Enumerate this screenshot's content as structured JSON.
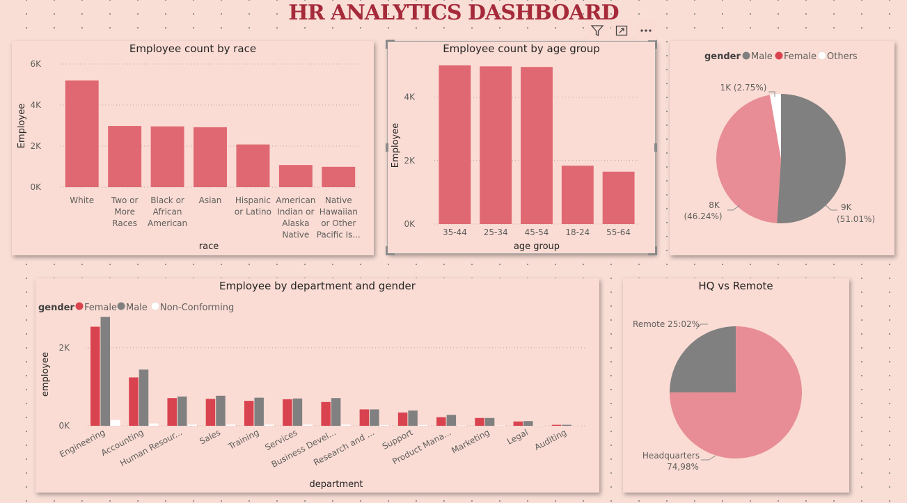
{
  "dashboard": {
    "title": "HR ANALYTICS DASHBOARD"
  },
  "toolbar": {
    "filter_icon": "filter-icon",
    "focus_icon": "focus-mode-icon",
    "more_icon": "more-options-icon"
  },
  "colors": {
    "female": "#d9434f",
    "male": "#808080",
    "other": "#ffffff",
    "bar": "#e06872",
    "pie_female": "#e88d95",
    "pie_male": "#808080"
  },
  "chart_data": [
    {
      "id": "race",
      "type": "bar",
      "title": "Employee count by race",
      "xlabel": "race",
      "ylabel": "Employee",
      "ylim": [
        0,
        6000
      ],
      "yticks": [
        "0K",
        "2K",
        "4K",
        "6K"
      ],
      "categories": [
        "White",
        "Two or More Races",
        "Black or African American",
        "Asian",
        "Hispanic or Latino",
        "American Indian or Alaska Native",
        "Native Hawaiian or Other Pacific Is..."
      ],
      "category_lines": [
        [
          "White"
        ],
        [
          "Two or",
          "More",
          "Races"
        ],
        [
          "Black or",
          "African",
          "American"
        ],
        [
          "Asian"
        ],
        [
          "Hispanic",
          "or Latino"
        ],
        [
          "American",
          "Indian or",
          "Alaska",
          "Native"
        ],
        [
          "Native",
          "Hawaiian",
          "or Other",
          "Pacific Is..."
        ]
      ],
      "values": [
        5200,
        2980,
        2960,
        2920,
        2080,
        1080,
        990
      ]
    },
    {
      "id": "age",
      "type": "bar",
      "title": "Employee count by age group",
      "xlabel": "age group",
      "ylabel": "Employee",
      "ylim": [
        0,
        5000
      ],
      "yticks": [
        "0K",
        "2K",
        "4K"
      ],
      "categories": [
        "35-44",
        "25-34",
        "45-54",
        "18-24",
        "55-64"
      ],
      "values": [
        5000,
        4970,
        4950,
        1840,
        1650
      ]
    },
    {
      "id": "gender",
      "type": "pie",
      "legend_title": "gender",
      "legend": [
        "Male",
        "Female",
        "Others"
      ],
      "slices": [
        {
          "name": "Male",
          "value": 51.01,
          "label1": "9K",
          "label2": "(51.01%)"
        },
        {
          "name": "Female",
          "value": 46.24,
          "label1": "8K",
          "label2": "(46.24%)"
        },
        {
          "name": "Others",
          "value": 2.75,
          "label1": "1K (2.75%)",
          "label2": ""
        }
      ],
      "legend_position": "top"
    },
    {
      "id": "dept",
      "type": "bar",
      "title": "Employee by department and gender",
      "xlabel": "department",
      "ylabel": "employee",
      "ylim": [
        0,
        2800
      ],
      "yticks": [
        "0K",
        "2K"
      ],
      "legend_title": "gender",
      "categories": [
        "Engineering",
        "Accounting",
        "Human Resour...",
        "Sales",
        "Training",
        "Services",
        "Business Devel...",
        "Research and ...",
        "Support",
        "Product Mana...",
        "Marketing",
        "Legal",
        "Auditing"
      ],
      "series": [
        {
          "name": "Female",
          "values": [
            2540,
            1240,
            710,
            690,
            640,
            680,
            610,
            420,
            340,
            220,
            200,
            110,
            25
          ]
        },
        {
          "name": "Male",
          "values": [
            2790,
            1440,
            750,
            770,
            720,
            700,
            710,
            420,
            390,
            280,
            200,
            120,
            25
          ]
        },
        {
          "name": "Non-Conforming",
          "values": [
            150,
            60,
            30,
            30,
            30,
            30,
            30,
            20,
            20,
            10,
            10,
            5,
            2
          ]
        }
      ],
      "legend_position": "top-left"
    },
    {
      "id": "location",
      "type": "pie",
      "title": "HQ vs Remote",
      "slices": [
        {
          "name": "Remote",
          "value": 25.02,
          "label1": "Remote 25:02%",
          "label2": ""
        },
        {
          "name": "Headquarters",
          "value": 74.98,
          "label1": "Headquarters",
          "label2": "74,98%"
        }
      ]
    }
  ]
}
